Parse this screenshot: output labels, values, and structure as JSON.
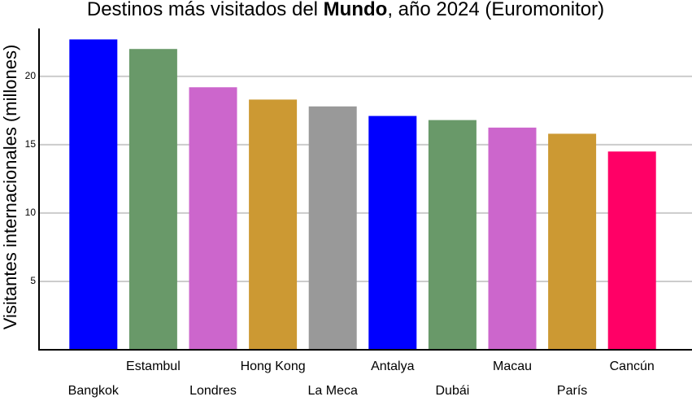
{
  "chart_data": {
    "type": "bar",
    "title": [
      {
        "text": "Destinos más visitados del "
      },
      {
        "text": "Mundo",
        "bold": true
      },
      {
        "text": ", año 2024 (Euromonitor)"
      }
    ],
    "y_label": "Visitantes internacionales (millones)",
    "categories": [
      "Bangkok",
      "Estambul",
      "Londres",
      "Hong Kong",
      "La Meca",
      "Antalya",
      "Dubái",
      "Macau",
      "París",
      "Cancún"
    ],
    "values": [
      22.7,
      22.0,
      19.2,
      18.3,
      17.8,
      17.1,
      16.8,
      16.25,
      15.8,
      14.5
    ],
    "colors": [
      "#0000ff",
      "#699969",
      "#cc66cc",
      "#cc9933",
      "#999999",
      "#0000ff",
      "#699969",
      "#cc66cc",
      "#cc9933",
      "#ff0066"
    ],
    "ylim": [
      0,
      23.5
    ],
    "yticks": [
      5,
      10,
      15,
      20
    ],
    "grid": true
  }
}
